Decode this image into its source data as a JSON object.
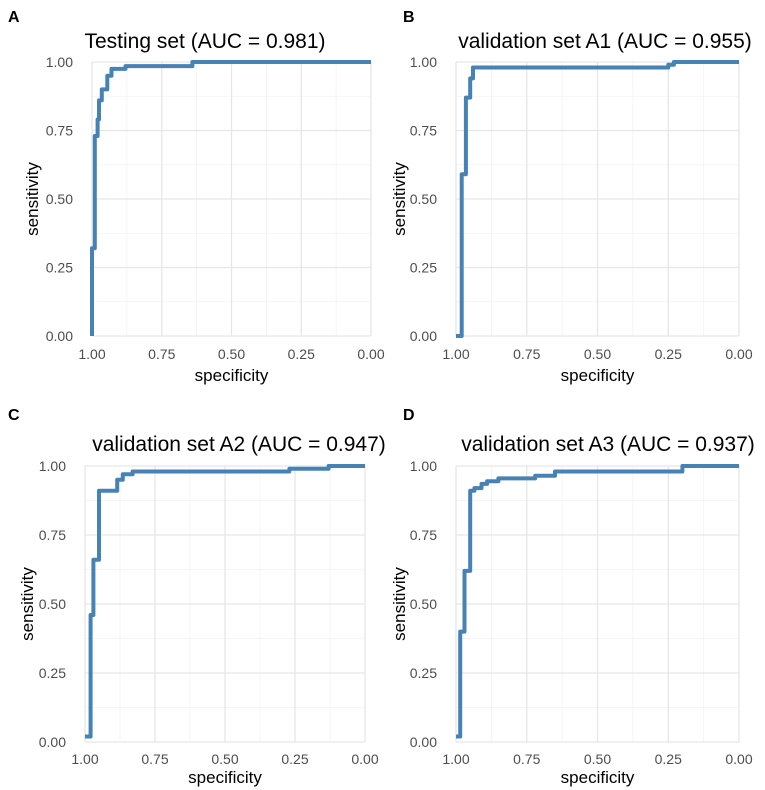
{
  "chart_data": [
    {
      "panel_label": "A",
      "type": "line",
      "title": "Testing set (AUC = 0.981)",
      "xlabel": "specificity",
      "ylabel": "sensitivity",
      "xlim": [
        1.0,
        0.0
      ],
      "ylim": [
        0.0,
        1.0
      ],
      "x_ticks": [
        "1.00",
        "0.75",
        "0.50",
        "0.25",
        "0.00"
      ],
      "y_ticks": [
        "0.00",
        "0.25",
        "0.50",
        "0.75",
        "1.00"
      ],
      "series": [
        {
          "name": "ROC",
          "color": "#4682b4",
          "x": [
            1.0,
            1.0,
            0.99,
            0.99,
            0.98,
            0.98,
            0.975,
            0.975,
            0.965,
            0.965,
            0.945,
            0.945,
            0.93,
            0.93,
            0.88,
            0.88,
            0.64,
            0.64,
            0.0
          ],
          "y": [
            0.0,
            0.32,
            0.32,
            0.73,
            0.73,
            0.79,
            0.79,
            0.86,
            0.86,
            0.9,
            0.9,
            0.95,
            0.95,
            0.975,
            0.975,
            0.985,
            0.985,
            1.0,
            1.0
          ]
        }
      ]
    },
    {
      "panel_label": "B",
      "type": "line",
      "title": "validation set A1 (AUC = 0.955)",
      "xlabel": "specificity",
      "ylabel": "sensitivity",
      "xlim": [
        1.0,
        0.0
      ],
      "ylim": [
        0.0,
        1.0
      ],
      "x_ticks": [
        "1.00",
        "0.75",
        "0.50",
        "0.25",
        "0.00"
      ],
      "y_ticks": [
        "0.00",
        "0.25",
        "0.50",
        "0.75",
        "1.00"
      ],
      "series": [
        {
          "name": "ROC",
          "color": "#4682b4",
          "x": [
            1.0,
            0.98,
            0.98,
            0.965,
            0.965,
            0.95,
            0.95,
            0.94,
            0.94,
            0.25,
            0.25,
            0.23,
            0.23,
            0.0
          ],
          "y": [
            0.0,
            0.0,
            0.59,
            0.59,
            0.87,
            0.87,
            0.94,
            0.94,
            0.98,
            0.98,
            0.99,
            0.99,
            1.0,
            1.0
          ]
        }
      ]
    },
    {
      "panel_label": "C",
      "type": "line",
      "title": "validation set A2 (AUC = 0.947)",
      "xlabel": "specificity",
      "ylabel": "sensitivity",
      "xlim": [
        1.0,
        0.0
      ],
      "ylim": [
        0.0,
        1.0
      ],
      "x_ticks": [
        "1.00",
        "0.75",
        "0.50",
        "0.25",
        "0.00"
      ],
      "y_ticks": [
        "0.00",
        "0.25",
        "0.50",
        "0.75",
        "1.00"
      ],
      "series": [
        {
          "name": "ROC",
          "color": "#4682b4",
          "x": [
            1.0,
            0.98,
            0.98,
            0.97,
            0.97,
            0.95,
            0.95,
            0.935,
            0.935,
            0.885,
            0.885,
            0.865,
            0.865,
            0.83,
            0.83,
            0.27,
            0.27,
            0.13,
            0.13,
            0.0
          ],
          "y": [
            0.02,
            0.02,
            0.46,
            0.46,
            0.66,
            0.66,
            0.91,
            0.91,
            0.91,
            0.91,
            0.95,
            0.95,
            0.97,
            0.97,
            0.98,
            0.98,
            0.99,
            0.99,
            1.0,
            1.0
          ]
        }
      ]
    },
    {
      "panel_label": "D",
      "type": "line",
      "title": "validation set A3 (AUC = 0.937)",
      "xlabel": "specificity",
      "ylabel": "sensitivity",
      "xlim": [
        1.0,
        0.0
      ],
      "ylim": [
        0.0,
        1.0
      ],
      "x_ticks": [
        "1.00",
        "0.75",
        "0.50",
        "0.25",
        "0.00"
      ],
      "y_ticks": [
        "0.00",
        "0.25",
        "0.50",
        "0.75",
        "1.00"
      ],
      "series": [
        {
          "name": "ROC",
          "color": "#4682b4",
          "x": [
            1.0,
            0.985,
            0.985,
            0.97,
            0.97,
            0.95,
            0.95,
            0.935,
            0.935,
            0.91,
            0.91,
            0.89,
            0.89,
            0.85,
            0.85,
            0.72,
            0.72,
            0.65,
            0.65,
            0.2,
            0.2,
            0.0
          ],
          "y": [
            0.02,
            0.02,
            0.4,
            0.4,
            0.62,
            0.62,
            0.91,
            0.91,
            0.92,
            0.92,
            0.935,
            0.935,
            0.945,
            0.945,
            0.955,
            0.955,
            0.965,
            0.965,
            0.98,
            0.98,
            1.0,
            1.0
          ]
        }
      ]
    }
  ]
}
